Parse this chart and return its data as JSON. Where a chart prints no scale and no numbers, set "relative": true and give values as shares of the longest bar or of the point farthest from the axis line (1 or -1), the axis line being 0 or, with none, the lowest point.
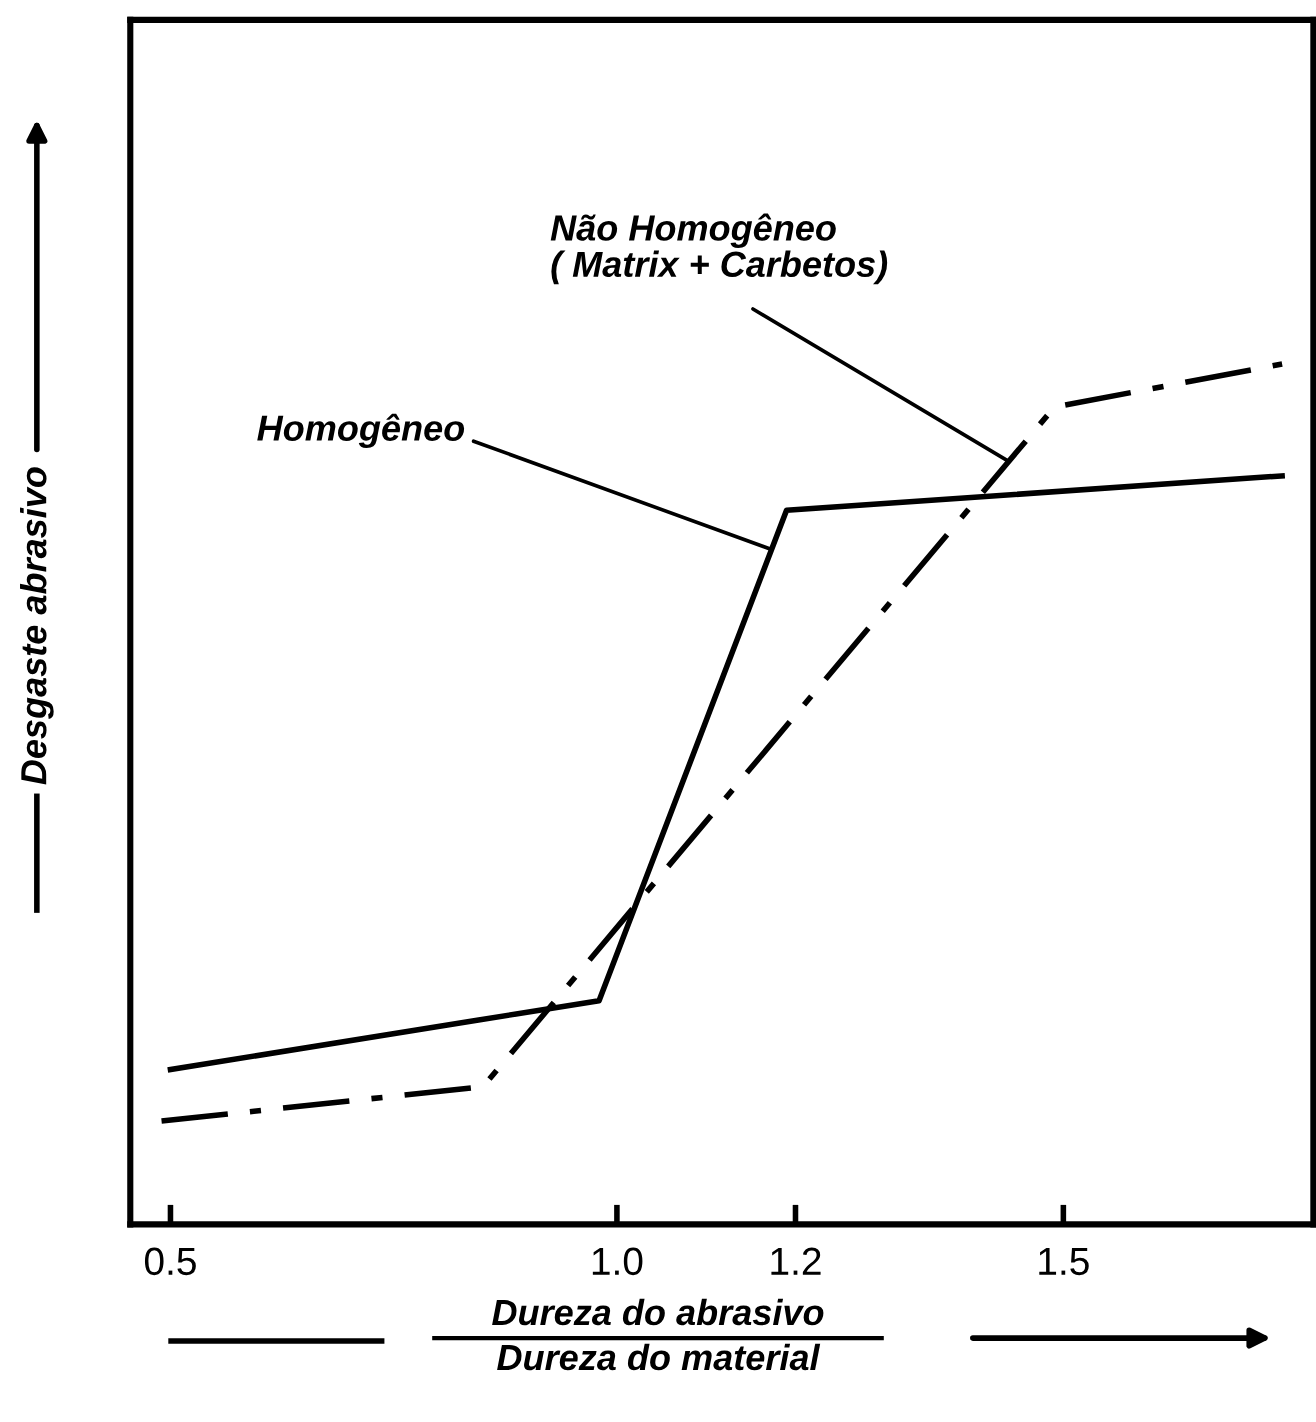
{
  "chart_data": {
    "type": "line",
    "relative": true,
    "xlabel": "Dureza do abrasivo\nDureza do material",
    "ylabel": "Desgaste abrasivo",
    "xlim": [
      0.455,
      1.78
    ],
    "xticks": [
      0.5,
      {
        "value": 1.0,
        "label": "1.0"
      },
      1.2,
      1.5
    ],
    "tick_labels": "x",
    "grid": false,
    "legend": false,
    "marker": "none",
    "series": [
      {
        "name": "Homogêneo",
        "color": "#000000",
        "line_style": "solid",
        "x": [
          0.5,
          0.98,
          1.19,
          1.745
        ],
        "values": [
          0.18,
          0.26,
          0.83,
          0.87
        ]
      },
      {
        "name": "Não Homogêneo\n( Matrix + Carbetos)",
        "color": "#000000",
        "line_style": "dashdot",
        "x": [
          0.49,
          0.85,
          1.49,
          1.745
        ],
        "values": [
          0.12,
          0.16,
          0.95,
          1.0
        ]
      }
    ]
  }
}
